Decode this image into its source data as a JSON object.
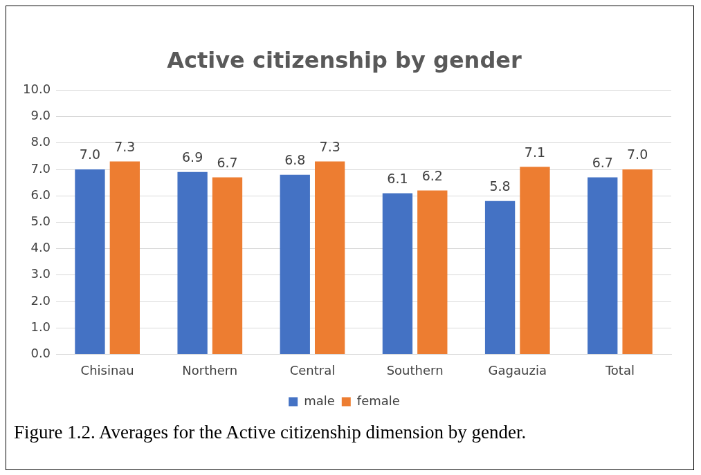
{
  "chart_data": {
    "type": "bar",
    "title": "Active citizenship by gender",
    "categories": [
      "Chisinau",
      "Northern",
      "Central",
      "Southern",
      "Gagauzia",
      "Total"
    ],
    "series": [
      {
        "name": "male",
        "color": "#4472c4",
        "values": [
          7.0,
          6.9,
          6.8,
          6.1,
          5.8,
          6.7
        ],
        "value_labels": [
          "7.0",
          "6.9",
          "6.8",
          "6.1",
          "5.8",
          "6.7"
        ]
      },
      {
        "name": "female",
        "color": "#ed7d31",
        "values": [
          7.3,
          6.7,
          7.3,
          6.2,
          7.1,
          7.0
        ],
        "value_labels": [
          "7.3",
          "6.7",
          "7.3",
          "6.2",
          "7.1",
          "7.0"
        ]
      }
    ],
    "ylim": [
      0,
      10
    ],
    "yticks": [
      {
        "value": 0,
        "label": "0.0"
      },
      {
        "value": 1,
        "label": "1.0"
      },
      {
        "value": 2,
        "label": "2.0"
      },
      {
        "value": 3,
        "label": "3.0"
      },
      {
        "value": 4,
        "label": "4.0"
      },
      {
        "value": 5,
        "label": "5.0"
      },
      {
        "value": 6,
        "label": "6.0"
      },
      {
        "value": 7,
        "label": "7.0"
      },
      {
        "value": 8,
        "label": "8.0"
      },
      {
        "value": 9,
        "label": "9.0"
      },
      {
        "value": 10,
        "label": "10.0"
      }
    ],
    "grid": "y",
    "legend": "bottom",
    "annotations": [
      "Figure 1.2. Averages for the Active citizenship dimension by gender."
    ]
  }
}
